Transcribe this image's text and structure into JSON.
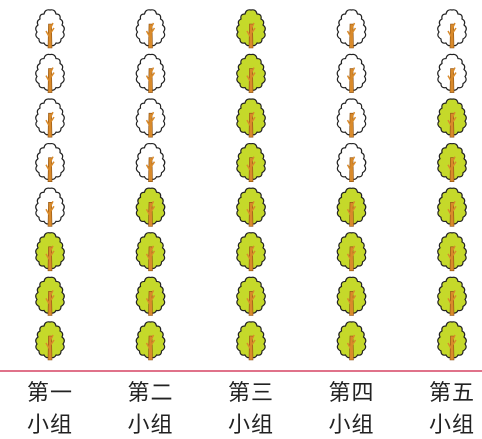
{
  "chart_data": {
    "type": "pictograph",
    "categories": [
      "第一小组",
      "第二小组",
      "第三小组",
      "第四小组",
      "第五小组"
    ],
    "values": [
      3,
      4,
      8,
      4,
      6
    ],
    "ylim": [
      0,
      8
    ],
    "color": "#c5d92a"
  }
}
